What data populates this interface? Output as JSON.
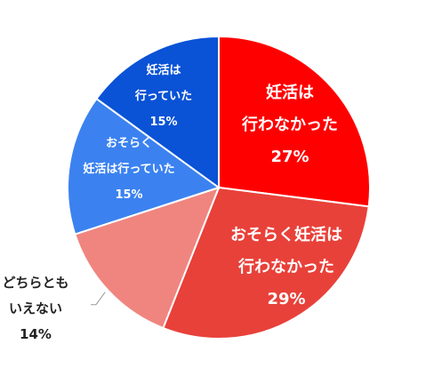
{
  "chart_data": {
    "type": "pie",
    "title": "",
    "slices": [
      {
        "label_lines": [
          "妊活は",
          "行わなかった"
        ],
        "value": 27,
        "value_label": "27%",
        "color": "#ff0000",
        "label_color": "#ffffff"
      },
      {
        "label_lines": [
          "おそらく妊活は",
          "行わなかった"
        ],
        "value": 29,
        "value_label": "29%",
        "color": "#e8413a",
        "label_color": "#ffffff"
      },
      {
        "label_lines": [
          "どちらとも",
          "いえない"
        ],
        "value": 14,
        "value_label": "14%",
        "color": "#f0857f",
        "label_color": "#222222"
      },
      {
        "label_lines": [
          "おそらく",
          "妊活は行っていた"
        ],
        "value": 15,
        "value_label": "15%",
        "color": "#3b82f0",
        "label_color": "#ffffff"
      },
      {
        "label_lines": [
          "妊活は",
          "行っていた"
        ],
        "value": 15,
        "value_label": "15%",
        "color": "#0a52d6",
        "label_color": "#ffffff"
      }
    ],
    "start_angle": "12 o'clock",
    "direction": "clockwise",
    "slice_border_color": "#ffffff",
    "legend": "none",
    "callout_line_color": "#9a9a9a"
  }
}
